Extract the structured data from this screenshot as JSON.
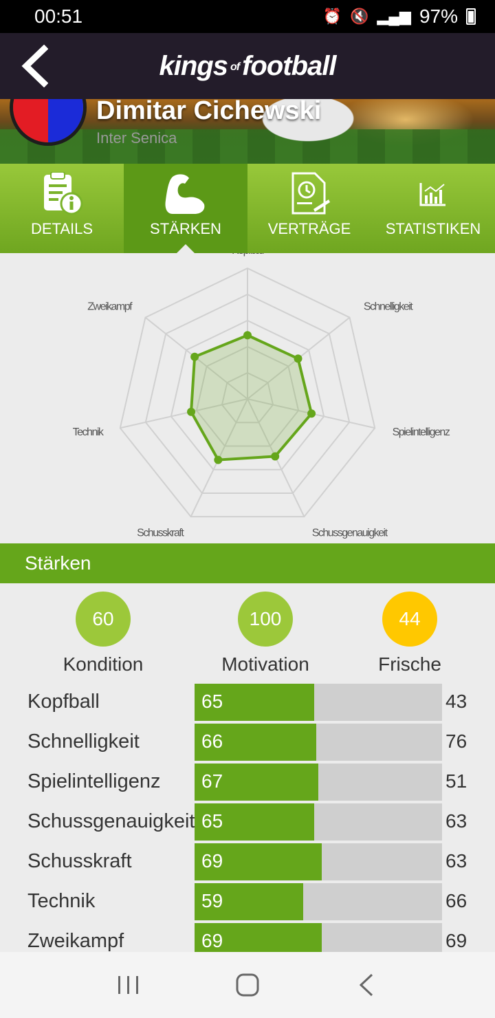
{
  "status_bar": {
    "time": "00:51",
    "battery": "97%"
  },
  "header": {
    "logo_a": "kings",
    "logo_of": "of",
    "logo_b": "football"
  },
  "player": {
    "name": "Dimitar Cichewski",
    "team": "Inter Senica"
  },
  "tabs": [
    {
      "label": "DETAILS",
      "icon": "document-info-icon"
    },
    {
      "label": "STÄRKEN",
      "icon": "flexed-arm-icon",
      "active": true
    },
    {
      "label": "VERTRÄGE",
      "icon": "contract-clock-icon"
    },
    {
      "label": "STATISTIKEN",
      "icon": "bar-chart-icon"
    }
  ],
  "chart_data": {
    "type": "radar",
    "axes": [
      "Kopfball",
      "Schnelligkeit",
      "Spielintelligenz",
      "Schussgenauigkeit",
      "Schusskraft",
      "Technik",
      "Zweikampf"
    ],
    "values": [
      65,
      66,
      67,
      65,
      69,
      59,
      69
    ],
    "rmax": 100,
    "rings": 5,
    "color": "#65a61b"
  },
  "section": {
    "title": "Stärken"
  },
  "summary": [
    {
      "value": "60",
      "label": "Kondition",
      "color": "#9cc83a"
    },
    {
      "value": "100",
      "label": "Motivation",
      "color": "#9cc83a"
    },
    {
      "value": "44",
      "label": "Frische",
      "color": "#ffc800"
    }
  ],
  "attributes": [
    {
      "name": "Kopfball",
      "value": 65,
      "other": "43"
    },
    {
      "name": "Schnelligkeit",
      "value": 66,
      "other": "76"
    },
    {
      "name": "Spielintelligenz",
      "value": 67,
      "other": "51"
    },
    {
      "name": "Schussgenauigkeit",
      "value": 65,
      "other": "63"
    },
    {
      "name": "Schusskraft",
      "value": 69,
      "other": "63"
    },
    {
      "name": "Technik",
      "value": 59,
      "other": "66"
    },
    {
      "name": "Zweikampf",
      "value": 69,
      "other": "69"
    }
  ]
}
